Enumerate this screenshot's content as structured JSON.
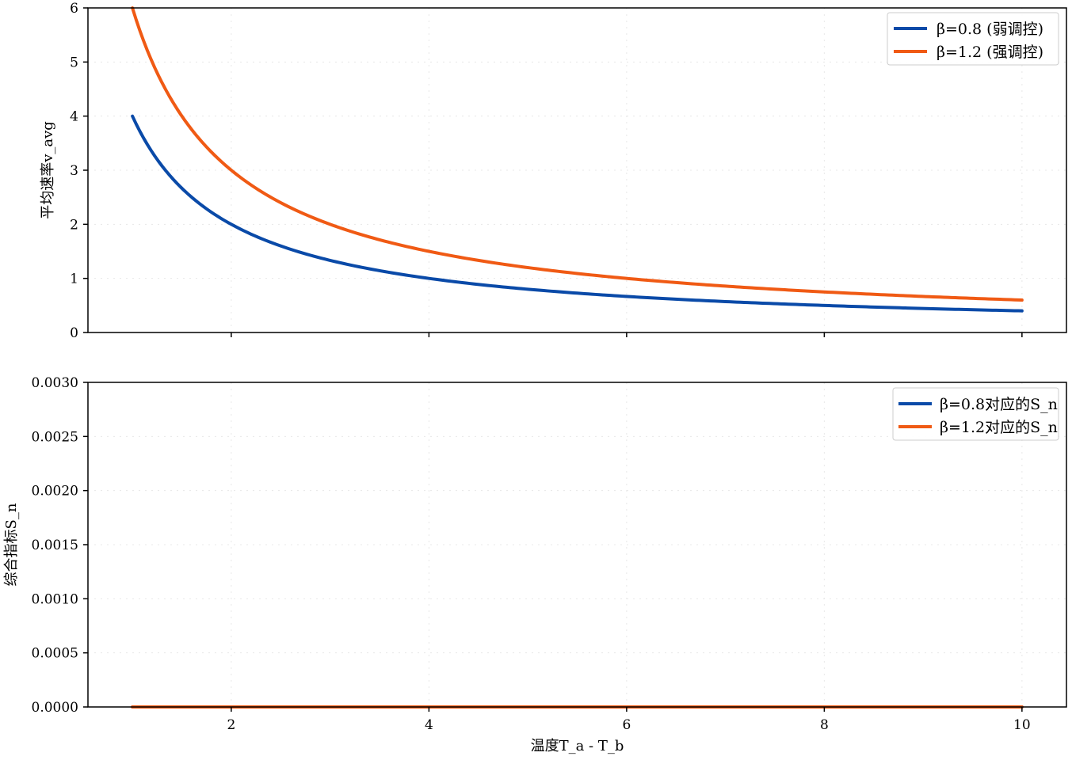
{
  "chart_data": [
    {
      "type": "line",
      "title": "",
      "xlabel": "",
      "ylabel": "平均速率v_avg",
      "xlim": [
        0.55,
        10.45
      ],
      "ylim": [
        0,
        6
      ],
      "xticks": [
        2,
        4,
        6,
        8,
        10
      ],
      "yticks": [
        0,
        1,
        2,
        3,
        4,
        5,
        6
      ],
      "ytick_labels": [
        "0",
        "1",
        "2",
        "3",
        "4",
        "5",
        "6"
      ],
      "show_xtick_labels": false,
      "grid": true,
      "legend_position": "top-right",
      "series": [
        {
          "name": "β=0.8 (弱调控)",
          "color": "#0a4aa8",
          "function": "4/x",
          "x_range": [
            1,
            10
          ],
          "samples": [
            [
              1,
              4.0
            ],
            [
              2,
              2.0
            ],
            [
              4,
              1.0
            ],
            [
              6,
              0.67
            ],
            [
              8,
              0.5
            ],
            [
              10,
              0.4
            ]
          ]
        },
        {
          "name": "β=1.2 (强调控)",
          "color": "#f05a14",
          "function": "6/x",
          "x_range": [
            1,
            10
          ],
          "samples": [
            [
              1,
              6.0
            ],
            [
              2,
              3.0
            ],
            [
              4,
              1.5
            ],
            [
              6,
              1.0
            ],
            [
              8,
              0.75
            ],
            [
              10,
              0.6
            ]
          ]
        }
      ]
    },
    {
      "type": "line",
      "title": "",
      "xlabel": "温度T_a - T_b",
      "ylabel": "综合指标S_n",
      "xlim": [
        0.55,
        10.45
      ],
      "ylim": [
        0,
        0.003
      ],
      "xticks": [
        2,
        4,
        6,
        8,
        10
      ],
      "xtick_labels": [
        "2",
        "4",
        "6",
        "8",
        "10"
      ],
      "yticks": [
        0,
        0.0005,
        0.001,
        0.0015,
        0.002,
        0.0025,
        0.003
      ],
      "ytick_labels": [
        "0.0000",
        "0.0005",
        "0.0010",
        "0.0015",
        "0.0020",
        "0.0025",
        "0.0030"
      ],
      "show_xtick_labels": true,
      "grid": true,
      "legend_position": "top-right",
      "series": [
        {
          "name": "β=0.8对应的S_n",
          "color": "#0a4aa8",
          "function": "0",
          "x_range": [
            1,
            10
          ],
          "samples": [
            [
              1,
              0
            ],
            [
              10,
              0
            ]
          ]
        },
        {
          "name": "β=1.2对应的S_n",
          "color": "#f05a14",
          "function": "0",
          "x_range": [
            1,
            10
          ],
          "samples": [
            [
              1,
              0
            ],
            [
              10,
              0
            ]
          ]
        }
      ]
    }
  ]
}
